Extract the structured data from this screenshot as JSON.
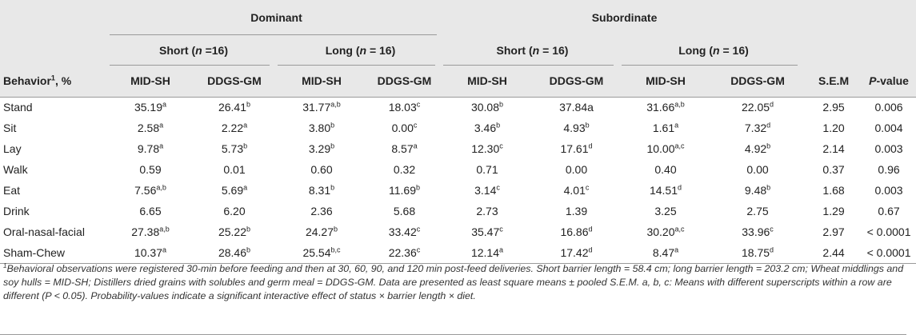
{
  "header": {
    "groups": [
      "Dominant",
      "Subordinate"
    ],
    "subgroups": [
      {
        "label": "Short",
        "n": "n",
        "count": " =16)"
      },
      {
        "label": "Long",
        "n": "n",
        "count": " = 16)"
      },
      {
        "label": "Short",
        "n": "n",
        "count": " = 16)"
      },
      {
        "label": "Long",
        "n": "n",
        "count": " = 16)"
      }
    ],
    "behavior_label": "Behavior",
    "behavior_sup": "1",
    "behavior_suffix": ", %",
    "diet_cols": [
      "MID-SH",
      "DDGS-GM",
      "MID-SH",
      "DDGS-GM",
      "MID-SH",
      "DDGS-GM",
      "MID-SH",
      "DDGS-GM"
    ],
    "sem": "S.E.M",
    "p_italic": "P",
    "p_suffix": "-value"
  },
  "rows": [
    {
      "label": "Stand",
      "cells": [
        [
          "35.19",
          "a"
        ],
        [
          "26.41",
          "b"
        ],
        [
          "31.77",
          "a,b"
        ],
        [
          "18.03",
          "c"
        ],
        [
          "30.08",
          "b"
        ],
        [
          "37.84a",
          ""
        ],
        [
          "31.66",
          "a,b"
        ],
        [
          "22.05",
          "d"
        ]
      ],
      "sem": "2.95",
      "p": "0.006"
    },
    {
      "label": "Sit",
      "cells": [
        [
          "2.58",
          "a"
        ],
        [
          "2.22",
          "a"
        ],
        [
          "3.80",
          "b"
        ],
        [
          "0.00",
          "c"
        ],
        [
          "3.46",
          "b"
        ],
        [
          "4.93",
          "b"
        ],
        [
          "1.61",
          "a"
        ],
        [
          "7.32",
          "d"
        ]
      ],
      "sem": "1.20",
      "p": "0.004"
    },
    {
      "label": "Lay",
      "cells": [
        [
          "9.78",
          "a"
        ],
        [
          "5.73",
          "b"
        ],
        [
          "3.29",
          "b"
        ],
        [
          "8.57",
          "a"
        ],
        [
          "12.30",
          "c"
        ],
        [
          "17.61",
          "d"
        ],
        [
          "10.00",
          "a,c"
        ],
        [
          "4.92",
          "b"
        ]
      ],
      "sem": "2.14",
      "p": "0.003"
    },
    {
      "label": "Walk",
      "cells": [
        [
          "0.59",
          ""
        ],
        [
          "0.01",
          ""
        ],
        [
          "0.60",
          ""
        ],
        [
          "0.32",
          ""
        ],
        [
          "0.71",
          ""
        ],
        [
          "0.00",
          ""
        ],
        [
          "0.40",
          ""
        ],
        [
          "0.00",
          ""
        ]
      ],
      "sem": "0.37",
      "p": "0.96"
    },
    {
      "label": "Eat",
      "cells": [
        [
          "7.56",
          "a,b"
        ],
        [
          "5.69",
          "a"
        ],
        [
          "8.31",
          "b"
        ],
        [
          "11.69",
          "b"
        ],
        [
          "3.14",
          "c"
        ],
        [
          "4.01",
          "c"
        ],
        [
          "14.51",
          "d"
        ],
        [
          "9.48",
          "b"
        ]
      ],
      "sem": "1.68",
      "p": "0.003"
    },
    {
      "label": "Drink",
      "cells": [
        [
          "6.65",
          ""
        ],
        [
          "6.20",
          ""
        ],
        [
          "2.36",
          ""
        ],
        [
          "5.68",
          ""
        ],
        [
          "2.73",
          ""
        ],
        [
          "1.39",
          ""
        ],
        [
          "3.25",
          ""
        ],
        [
          "2.75",
          ""
        ]
      ],
      "sem": "1.29",
      "p": "0.67"
    },
    {
      "label": "Oral-nasal-facial",
      "cells": [
        [
          "27.38",
          "a,b"
        ],
        [
          "25.22",
          "b"
        ],
        [
          "24.27",
          "b"
        ],
        [
          "33.42",
          "c"
        ],
        [
          "35.47",
          "c"
        ],
        [
          "16.86",
          "d"
        ],
        [
          "30.20",
          "a,c"
        ],
        [
          "33.96",
          "c"
        ]
      ],
      "sem": "2.97",
      "p": "< 0.0001"
    },
    {
      "label": "Sham-Chew",
      "cells": [
        [
          "10.37",
          "a"
        ],
        [
          "28.46",
          "b"
        ],
        [
          "25.54",
          "b,c"
        ],
        [
          "22.36",
          "c"
        ],
        [
          "12.14",
          "a"
        ],
        [
          "17.42",
          "d"
        ],
        [
          "8.47",
          "a"
        ],
        [
          "18.75",
          "d"
        ]
      ],
      "sem": "2.44",
      "p": "< 0.0001"
    }
  ],
  "footnote": {
    "sup": "1",
    "text": "Behavioral observations were registered 30-min before feeding and then at 30, 60, 90, and 120 min post-feed deliveries. Short barrier length = 58.4 cm; long barrier length = 203.2 cm; Wheat middlings and soy hulls = MID-SH; Distillers dried grains with solubles and germ meal = DDGS-GM. Data are presented as least square means ± pooled S.E.M. a, b, c: Means with different superscripts within a row are different (P < 0.05). Probability-values indicate a significant interactive effect of status × barrier length × diet."
  }
}
